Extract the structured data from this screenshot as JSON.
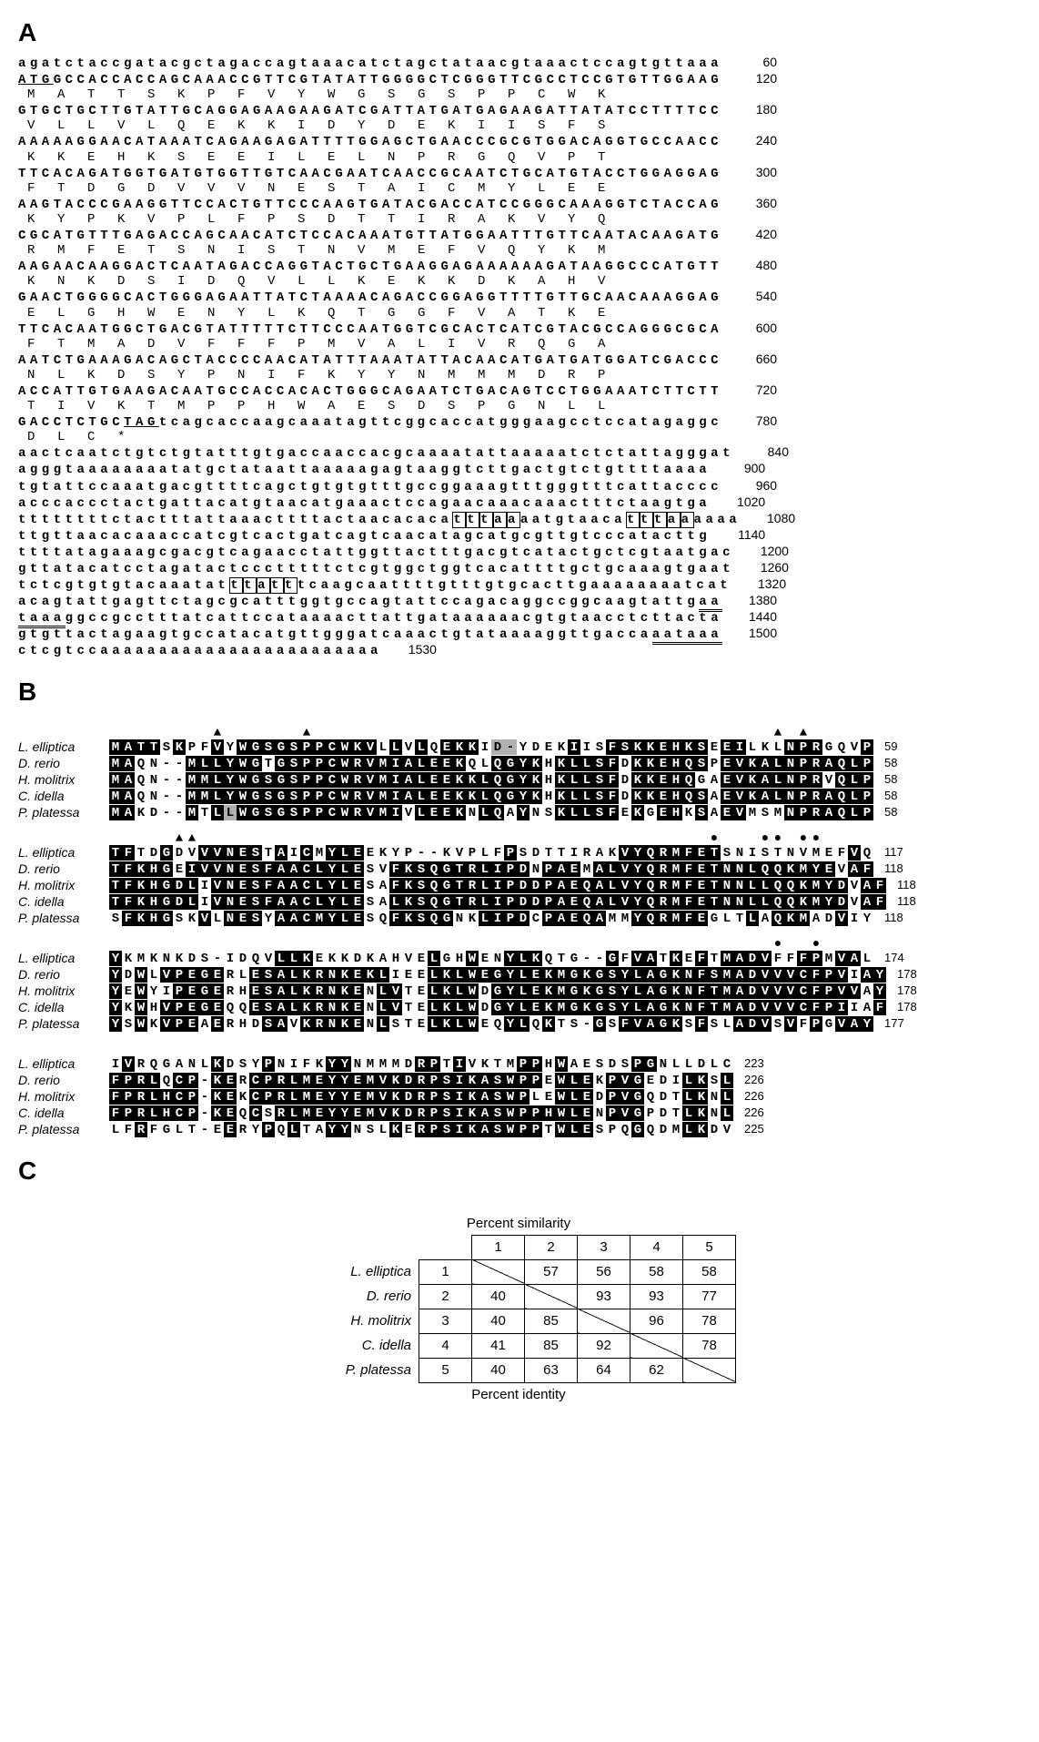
{
  "panelA": {
    "label": "A",
    "fontsize_seq": 14,
    "letter_spacing_nt": 4.5,
    "letter_spacing_aa": 24.6,
    "rows": [
      {
        "type": "nt",
        "text": "agatctaccgatacgctagaccagtaaacatctagctataacgtaaactccagtgttaaa",
        "num": 60
      },
      {
        "type": "nt",
        "text": "ATGGCCACCACCAGCAAACCGTTCGTATATTGGGGCTCGGGTTCGCCTCCGTGTTGGAAG",
        "num": 120,
        "underline_start": 0,
        "underline_len": 3
      },
      {
        "type": "aa",
        "text": "MATTSKPFVYWGSGSPPCWK"
      },
      {
        "type": "nt",
        "text": "GTGCTGCTTGTATTGCAGGAGAAGAAGATCGATTATGATGAGAAGATTATATCCTTTTCC",
        "num": 180
      },
      {
        "type": "aa",
        "text": "VLLVLQEKKIDYDEKIISFS"
      },
      {
        "type": "nt",
        "text": "AAAAAGGAACATAAATCAGAAGAGATTTTGGAGCTGAACCCGCGTGGACAGGTGCCAACC",
        "num": 240
      },
      {
        "type": "aa",
        "text": "KKEHKSEEILELNPRGQVPT"
      },
      {
        "type": "nt",
        "text": "TTCACAGATGGTGATGTGGTTGTCAACGAATCAACCGCAATCTGCATGTACCTGGAGGAG",
        "num": 300
      },
      {
        "type": "aa",
        "text": "FTDGDVVVNESTAICMYLEE"
      },
      {
        "type": "nt",
        "text": "AAGTACCCGAAGGTTCCACTGTTCCCAAGTGATACGACCATCCGGGCAAAGGTCTACCAG",
        "num": 360
      },
      {
        "type": "aa",
        "text": "KYPKVPLFPSDTTIRAKVYQ"
      },
      {
        "type": "nt",
        "text": "CGCATGTTTGAGACCAGCAACATCTCCACAAATGTTATGGAATTTGTTCAATACAAGATG",
        "num": 420
      },
      {
        "type": "aa",
        "text": "RMFETSNISTNVMEFVQYKM"
      },
      {
        "type": "nt",
        "text": "AAGAACAAGGACTCAATAGACCAGGTACTGCTGAAGGAGAAAAAAGATAAGGCCCATGTT",
        "num": 480
      },
      {
        "type": "aa",
        "text": "KNKDSIDQVLLKEKKDKAHV"
      },
      {
        "type": "nt",
        "text": "GAACTGGGGCACTGGGAGAATTATCTAAAACAGACCGGAGGTTTTGTTGCAACAAAGGAG",
        "num": 540
      },
      {
        "type": "aa",
        "text": "ELGHWENYLKQTGGFVATKE"
      },
      {
        "type": "nt",
        "text": "TTCACAATGGCTGACGTATTTTTCTTCCCAATGGTCGCACTCATCGTACGCCAGGGCGCA",
        "num": 600
      },
      {
        "type": "aa",
        "text": "FTMADVFFFPMVALIVRQGA"
      },
      {
        "type": "nt",
        "text": "AATCTGAAAGACAGCTACCCCAACATATTTAAATATTACAACATGATGATGGATCGACCC",
        "num": 660
      },
      {
        "type": "aa",
        "text": "NLKDSYPNIFKYYNMMMDRP"
      },
      {
        "type": "nt",
        "text": "ACCATTGTGAAGACAATGCCACCACACTGGGCAGAATCTGACAGTCCTGGAAATCTTCTT",
        "num": 720
      },
      {
        "type": "aa",
        "text": "TIVKTMPPHWAESDSPGNLL"
      },
      {
        "type": "nt",
        "text": "GACCTCTGCTAGtcagcaccaagcaaatagttcggcaccatgggaagcctccatagaggc",
        "num": 780,
        "underline_start": 9,
        "underline_len": 3
      },
      {
        "type": "aa",
        "text": "DLC*"
      },
      {
        "type": "nt",
        "text": "aactcaatctgtctgtatttgtgaccaaccacgcaaaatattaaaaatctctattagggat",
        "num": 840
      },
      {
        "type": "nt",
        "text": "agggtaaaaaaaatatgctataattaaaaagagtaaggtcttgactgtctgttttaaaa",
        "num": 900
      },
      {
        "type": "nt",
        "text": "tgtattccaaatgacgttttcagctgtgtgtttgccggaaagtttgggtttcattacccc",
        "num": 960
      },
      {
        "type": "nt",
        "text": "acccaccctactgattacatgtaacatgaaactccagaacaaacaaactttctaagtga",
        "num": 1020
      },
      {
        "type": "nt",
        "text": "ttttttttctactttattaaacttttactaacacacatttaaaatgtaacatttaaaaaa",
        "num": 1080,
        "boxes": [
          [
            37,
            5
          ],
          [
            51,
            5
          ]
        ]
      },
      {
        "type": "nt",
        "text": "ttgttaacacaaaccatcgtcactgatcagtcaacatagcatgcgttgtcccatacttg",
        "num": 1140
      },
      {
        "type": "nt",
        "text": "ttttatagaaagcgacgtcagaacctattggttactttgacgtcatactgctcgtaatgac",
        "num": 1200
      },
      {
        "type": "nt",
        "text": "gttatacatcctagatactccctttttctcgtggctggtcacattttgctgcaaagtgaat",
        "num": 1260
      },
      {
        "type": "nt",
        "text": "tctcgtgtgtacaaatatttatttcaagcaattttgtttgtgcacttgaaaaaaaatcat",
        "num": 1320,
        "boxes": [
          [
            18,
            5
          ]
        ]
      },
      {
        "type": "nt",
        "text": "acagtattgagttctagcgcatttggtgccagtattccagacaggccggcaagtattgaa",
        "num": 1380,
        "dblunder": [
          [
            58,
            2
          ]
        ]
      },
      {
        "type": "nt",
        "text": "taaaggccgcctttatcattccataaaacttattgataaaaaacgtgtaacctcttacta",
        "num": 1440,
        "dblunder": [
          [
            0,
            4
          ]
        ]
      },
      {
        "type": "nt",
        "text": "gtgttactagaagtgccatacatgttgggatcaaactgtataaaaggttgaccaaataaa",
        "num": 1500,
        "dblunder": [
          [
            54,
            6
          ]
        ]
      },
      {
        "type": "nt",
        "text": "ctcgtccaaaaaaaaaaaaaaaaaaaaaaaa",
        "num": 1530
      }
    ]
  },
  "panelB": {
    "label": "B",
    "species": [
      "L. elliptica",
      "D. rerio",
      "H. molitrix",
      "C. idella",
      "P. platessa"
    ],
    "colors": {
      "black": "#000000",
      "grey": "#b0b0b0",
      "white": "#ffffff",
      "text_on_black": "#ffffff"
    },
    "marker_triangle": "▲",
    "marker_circle": "●",
    "blocks": [
      {
        "markers": {
          "8": "▲",
          "15": "▲",
          "52": "▲",
          "54": "▲"
        },
        "seqs": [
          {
            "seq": "MATTSKPFVYWGSGSPPCWKVLLVLQEKKID-YDEKIISFSKKEHKSEEILKLNPRGQVP",
            "shade": "bbbbwbwwbwbbbbbbbbbbbwbwbwbbbwggwwwwbwwbbbbbbbbwbbwwwbbbwwwb",
            "num": 59
          },
          {
            "seq": "MAQN--MLLYWGTGSPPCWRVMIALEEKQLQGYKHKLLSFDKKEHQSPEVKALNPRAQLP",
            "shade": "bbwwwwbbbbbbwbbbbbbbbbbbbbbbwwbbbbwbbbbbwbbbbbbwbbbbbbbbbbbb",
            "num": 58
          },
          {
            "seq": "MAQN--MMLYWGSGSPPCWRVMIALEEKKLQGYKHKLLSFDKKEHQGAEVKALNPRVQLP",
            "shade": "bbwwwwbbbbbbbbbbbbbbbbbbbbbbbbbbbbwbbbbbwbbbbbwwbbbbbbbbwbbb",
            "num": 58
          },
          {
            "seq": "MAQN--MMLYWGSGSPPCWRVMIALEEKKLQGYKHKLLSFDKKEHQSAEVKALNPRAQLP",
            "shade": "bbwwwwbbbbbbbbbbbbbbbbbbbbbbbbbbbbwbbbbbwbbbbbbwbbbbbbbbbbbb",
            "num": 58
          },
          {
            "seq": "MAKD--MTLLWGSGSPPCWRVMIVLEEKNLQAYNSKLLSFEKGEHKSAEVMSMNPRAQLP",
            "shade": "bbwwwwbwbgbbbbbbbbbbbbbwbbbbwbbwbwwbbbbbwbwbbwbwbbwwwbbbbbbb",
            "num": 58
          }
        ]
      },
      {
        "markers": {
          "5": "▲",
          "6": "▲",
          "47": "●",
          "51": "●",
          "52": "●",
          "54": "●",
          "55": "●"
        },
        "seqs": [
          {
            "seq": "TFTDGDVVVNESTAICMYLEEKYP--KVPLFPSDTTIRAKVYQRMFETSNISTNVMEFVQ",
            "shade": "bbwwbwwbbbbbwbwbwbbbwwwwwwwwwwwbwwwwwwwwbbbbbbbbwwwwwwwwwwbw",
            "num": 117
          },
          {
            "seq": "TFKHGEIVVNESFAACLYLESVFKSQGTRLIPDNPAEMALVYQRMFETNNLQQKMYEVAF",
            "shade": "bbbbbwbbbbbbbbbbbbbbwwbbbbbbbbbbbwbbbwbbbbbbbbbbbbbbbbbbbwbb",
            "num": 118
          },
          {
            "seq": "TFKHGDLIVNESFAACLYLESAFKSQGTRLIPDDPAEQALVYQRMFETNNLLQQKMYDVAF",
            "shade": "bbbbbbbwbbbbbbbbbbbbwwbbbbbbbbbbbbbbbbbbbbbbbbbbbbbbbbbbbbwbb",
            "num": 118
          },
          {
            "seq": "TFKHGDLIVNESFAACLYLESALKSQGTRLIPDDPAEQALVYQRMFETNNLLQQKMYDVAF",
            "shade": "bbbbbbbwbbbbbbbbbbbbwwbbbbbbbbbbbbbbbbbbbbbbbbbbbbbbbbbbbbwbb",
            "num": 118
          },
          {
            "seq": "SFKHGSKVLNESYAACMYLESQFKSQGNKLIPDCPAEQAMMYQRMFEGLTLAQKMADVIY",
            "shade": "wbbbbwwbwbbbwbbbbbbbwwbbbbbwwbbbbwbbbbbwwbbbbbbwwwbwbbbwwbww",
            "num": 118
          }
        ]
      },
      {
        "markers": {
          "52": "●",
          "55": "●"
        },
        "seqs": [
          {
            "seq": "YKMKNKDS-IDQVLLKEKKDKAHVELGHWENYLKQTG--GFVATKEFTMADVFFFPMVAL",
            "shade": "bwwwwwwwwwwwwbbbwwwwwwwwwbwwbwwbbbwwwwwbwbbwbwbwbbbbwwbbwbbw",
            "num": 174
          },
          {
            "seq": "YDWLVPEGERLESALKRNKEKLIEELKLWEGYLEKMGKGSYLAGKNFSMADVVVCFPVIAY",
            "shade": "bwbwbbbbbwwbbbbbbbbbbbwwwbbbbbbbbbbbbbbbbbbbbbbbbbbbbbbbbbwbbb",
            "num": 178
          },
          {
            "seq": "YEWYIPEGERHESALKRNKENLVTELKLWDGYLEKMGKGSYLAGKNFTMADVVVCFPVVAY",
            "shade": "bwbwwbbbbwwbbbbbbbbbwbbwwbbbbwbbbbbbbbbbbbbbbbbbbbbbbbbbbbbwbb",
            "num": 178
          },
          {
            "seq": "YKWHVPEGEQQESALKRNKENLVTELKLWDGYLEKMGKGSYLAGKNFTMADVVVCFPIIAF",
            "shade": "bwbwbbbbbwwbbbbbbbbbwbbwwbbbbwbbbbbbbbbbbbbbbbbbbbbbbbbbbbwwbb",
            "num": 178
          },
          {
            "seq": "YSWKVPEAERHDSAVKRNKENLSTELKLWEQYLQKTS-GSFVAGKSFSLADVSVFPGVAY",
            "shade": "bwbwbbbwbwwwbbwbbbbbwbwwwbbbbwwbbwbwwwbwbbbbbwbwwbbbwbwbwbbb",
            "num": 177
          }
        ]
      },
      {
        "markers": {},
        "seqs": [
          {
            "seq": "IVRQGANLKDSYPNIFKYYNMMMDRPTIVKTMPPHWAESDSPGNLLDLC",
            "shade": "wbwwwwwwbwwwbwwwwbbwwwwwbbwbwwwwbbwbwwwwwbbwwwwww",
            "num": 223
          },
          {
            "seq": "FPRLQCP-KERCPRLMEYYEMVKDRPSIKASWPPEWLEKPVGEDILKSL",
            "shade": "bbbbwbbwbbwbbbbbbbbbbbbbbbbbbbbbbbwbbbwbbbwwwbbwb",
            "num": 226
          },
          {
            "seq": "FPRLHCP-KEKCPRLMEYYEMVKDRPSIKASWPLEWLEDPVGQDTLKNL",
            "shade": "bbbbbbbwbbwbbbbbbbbbbbbbbbbbbbbbbwwbbbwbbbwwwbbwb",
            "num": 226
          },
          {
            "seq": "FPRLHCP-KEQCSRLMEYYEMVKDRPSIKASWPPHWLENPVGPDTLKNL",
            "shade": "bbbbbbbwbbwbwbbbbbbbbbbbbbbbbbbbbbbbbbwbbbwwwbbwb",
            "num": 226
          },
          {
            "seq": "LFRFGLT-EERYPQLTAYYNSLKERPSIKASWPPTWLESPQGQDMLKDV",
            "shade": "wwbwwwwwwbwwbwbwwbbwwwbwbbbbbbbbbbwbbbwwwbwwwbbww",
            "num": 225
          }
        ]
      }
    ]
  },
  "panelC": {
    "label": "C",
    "top_title": "Percent similarity",
    "bottom_title": "Percent identity",
    "species": [
      "L. elliptica",
      "D. rerio",
      "H. molitrix",
      "C. idella",
      "P. platessa"
    ],
    "headers": [
      1,
      2,
      3,
      4,
      5
    ],
    "matrix": [
      [
        null,
        57,
        56,
        58,
        58
      ],
      [
        40,
        null,
        93,
        93,
        77
      ],
      [
        40,
        85,
        null,
        96,
        78
      ],
      [
        41,
        85,
        92,
        null,
        78
      ],
      [
        40,
        63,
        64,
        62,
        null
      ]
    ]
  }
}
